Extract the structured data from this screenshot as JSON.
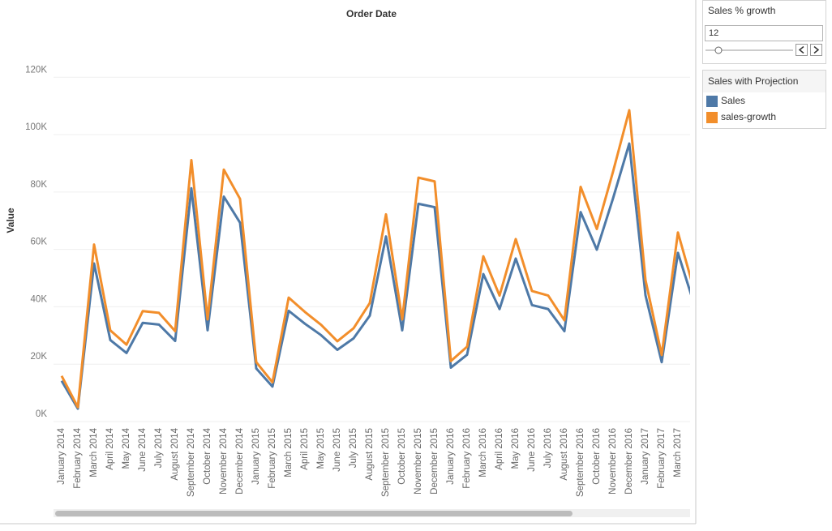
{
  "chart_data": {
    "type": "line",
    "title": "Order Date",
    "y_label": "Value",
    "categories": [
      "January 2014",
      "February 2014",
      "March 2014",
      "April 2014",
      "May 2014",
      "June 2014",
      "July 2014",
      "August 2014",
      "September 2014",
      "October 2014",
      "November 2014",
      "December 2014",
      "January 2015",
      "February 2015",
      "March 2015",
      "April 2015",
      "May 2015",
      "June 2015",
      "July 2015",
      "August 2015",
      "September 2015",
      "October 2015",
      "November 2015",
      "December 2015",
      "January 2016",
      "February 2016",
      "March 2016",
      "April 2016",
      "May 2016",
      "June 2016",
      "July 2016",
      "August 2016",
      "September 2016",
      "October 2016",
      "November 2016",
      "December 2016",
      "January 2017",
      "February 2017",
      "March 2017",
      null
    ],
    "series": [
      {
        "name": "Sales",
        "color": "#4e79a7",
        "values": [
          14200,
          4500,
          55100,
          28400,
          23900,
          34400,
          33800,
          28100,
          81300,
          31800,
          78400,
          69300,
          18500,
          12200,
          38600,
          34100,
          30100,
          25000,
          29000,
          36900,
          64500,
          31800,
          75900,
          74700,
          18800,
          23300,
          51400,
          39200,
          56800,
          40600,
          39200,
          31500,
          73000,
          59900,
          77800,
          96900,
          44000,
          20700,
          58800,
          40900
        ]
      },
      {
        "name": "sales-growth",
        "color": "#f28e2b",
        "values": [
          15900,
          5000,
          61700,
          31800,
          26800,
          38500,
          37900,
          31500,
          91100,
          35600,
          87800,
          77600,
          20700,
          13700,
          43200,
          38200,
          33700,
          28000,
          32500,
          41300,
          72200,
          35600,
          85000,
          83700,
          21100,
          26100,
          57600,
          43900,
          63600,
          45500,
          43900,
          35300,
          81800,
          67100,
          87100,
          108500,
          49300,
          23200,
          65900,
          45800
        ]
      }
    ],
    "ylim": [
      0,
      139000
    ],
    "yticks": [
      {
        "value": 0,
        "label": "0K"
      },
      {
        "value": 20000,
        "label": "20K"
      },
      {
        "value": 40000,
        "label": "40K"
      },
      {
        "value": 60000,
        "label": "60K"
      },
      {
        "value": 80000,
        "label": "80K"
      },
      {
        "value": 100000,
        "label": "100K"
      },
      {
        "value": 120000,
        "label": "120K"
      }
    ],
    "grid": true,
    "legend_title": "Sales with Projection"
  },
  "parameter": {
    "title": "Sales % growth",
    "value": "12"
  }
}
